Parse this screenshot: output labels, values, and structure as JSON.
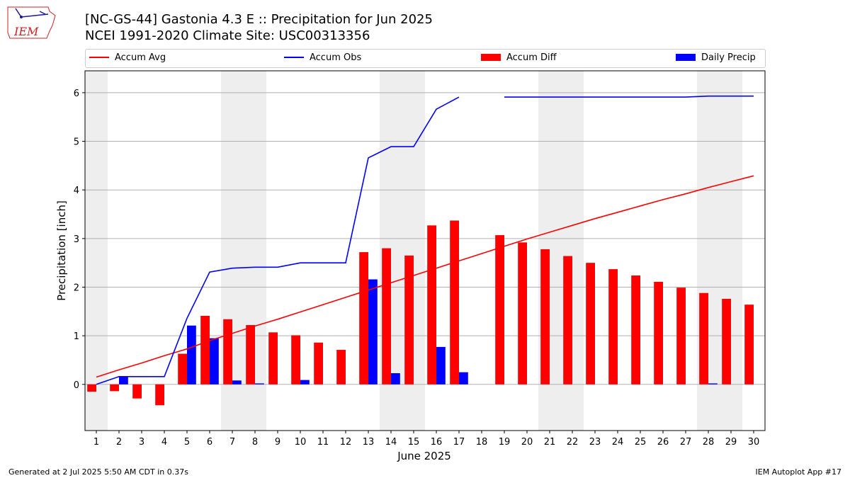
{
  "logo": {
    "text": "IEM"
  },
  "footer": {
    "generated": "Generated at 2 Jul 2025 5:50 AM CDT in 0.37s",
    "app": "IEM Autoplot App #17"
  },
  "colors": {
    "avg": "#ff0000",
    "obs": "#0000ff",
    "diff": "#ff0000",
    "daily": "#0000ff",
    "weekend_band": "#eeeeee",
    "grid": "#b0b0b0"
  },
  "chart_data": {
    "type": "bar",
    "title": "[NC-GS-44] Gastonia 4.3 E :: Precipitation for Jun 2025",
    "subtitle": "NCEI 1991-2020 Climate Site: USC00313356",
    "xlabel": "June 2025",
    "ylabel": "Precipitation [inch]",
    "xlim": [
      0.5,
      30.5
    ],
    "ylim": [
      -0.95,
      6.45
    ],
    "yticks": [
      0,
      1,
      2,
      3,
      4,
      5,
      6
    ],
    "grid": true,
    "legend_position": "top",
    "weekend_days": [
      1,
      7,
      8,
      14,
      15,
      21,
      22,
      28,
      29
    ],
    "x": [
      1,
      2,
      3,
      4,
      5,
      6,
      7,
      8,
      9,
      10,
      11,
      12,
      13,
      14,
      15,
      16,
      17,
      18,
      19,
      20,
      21,
      22,
      23,
      24,
      25,
      26,
      27,
      28,
      29,
      30
    ],
    "series": [
      {
        "name": "Accum Avg",
        "type": "line",
        "values": [
          0.15,
          0.3,
          0.44,
          0.59,
          0.73,
          0.9,
          1.05,
          1.2,
          1.34,
          1.49,
          1.64,
          1.79,
          1.94,
          2.09,
          2.24,
          2.39,
          2.54,
          2.69,
          2.84,
          2.99,
          3.13,
          3.27,
          3.41,
          3.54,
          3.67,
          3.8,
          3.92,
          4.05,
          4.17,
          4.29
        ]
      },
      {
        "name": "Accum Obs",
        "type": "line",
        "values": [
          0.0,
          0.16,
          0.16,
          0.16,
          1.36,
          2.31,
          2.39,
          2.41,
          2.41,
          2.5,
          2.5,
          2.5,
          4.66,
          4.89,
          4.89,
          5.66,
          5.91,
          null,
          5.91,
          5.91,
          5.91,
          5.91,
          5.91,
          5.91,
          5.91,
          5.91,
          5.91,
          5.93,
          5.93,
          5.93
        ]
      },
      {
        "name": "Accum Diff",
        "type": "bar",
        "values": [
          -0.15,
          -0.14,
          -0.29,
          -0.43,
          0.63,
          1.41,
          1.34,
          1.22,
          1.07,
          1.01,
          0.86,
          0.71,
          2.72,
          2.8,
          2.65,
          3.27,
          3.37,
          null,
          3.07,
          2.92,
          2.78,
          2.64,
          2.5,
          2.37,
          2.24,
          2.11,
          1.99,
          1.88,
          1.76,
          1.64
        ]
      },
      {
        "name": "Daily Precip",
        "type": "bar",
        "values": [
          0.0,
          0.16,
          0.0,
          0.0,
          1.21,
          0.95,
          0.08,
          0.02,
          0.0,
          0.09,
          0.0,
          0.0,
          2.16,
          0.23,
          0.0,
          0.77,
          0.25,
          null,
          0.0,
          0.0,
          0.0,
          0.0,
          0.0,
          0.0,
          0.0,
          0.0,
          0.0,
          0.02,
          0.0,
          0.0
        ]
      }
    ]
  }
}
